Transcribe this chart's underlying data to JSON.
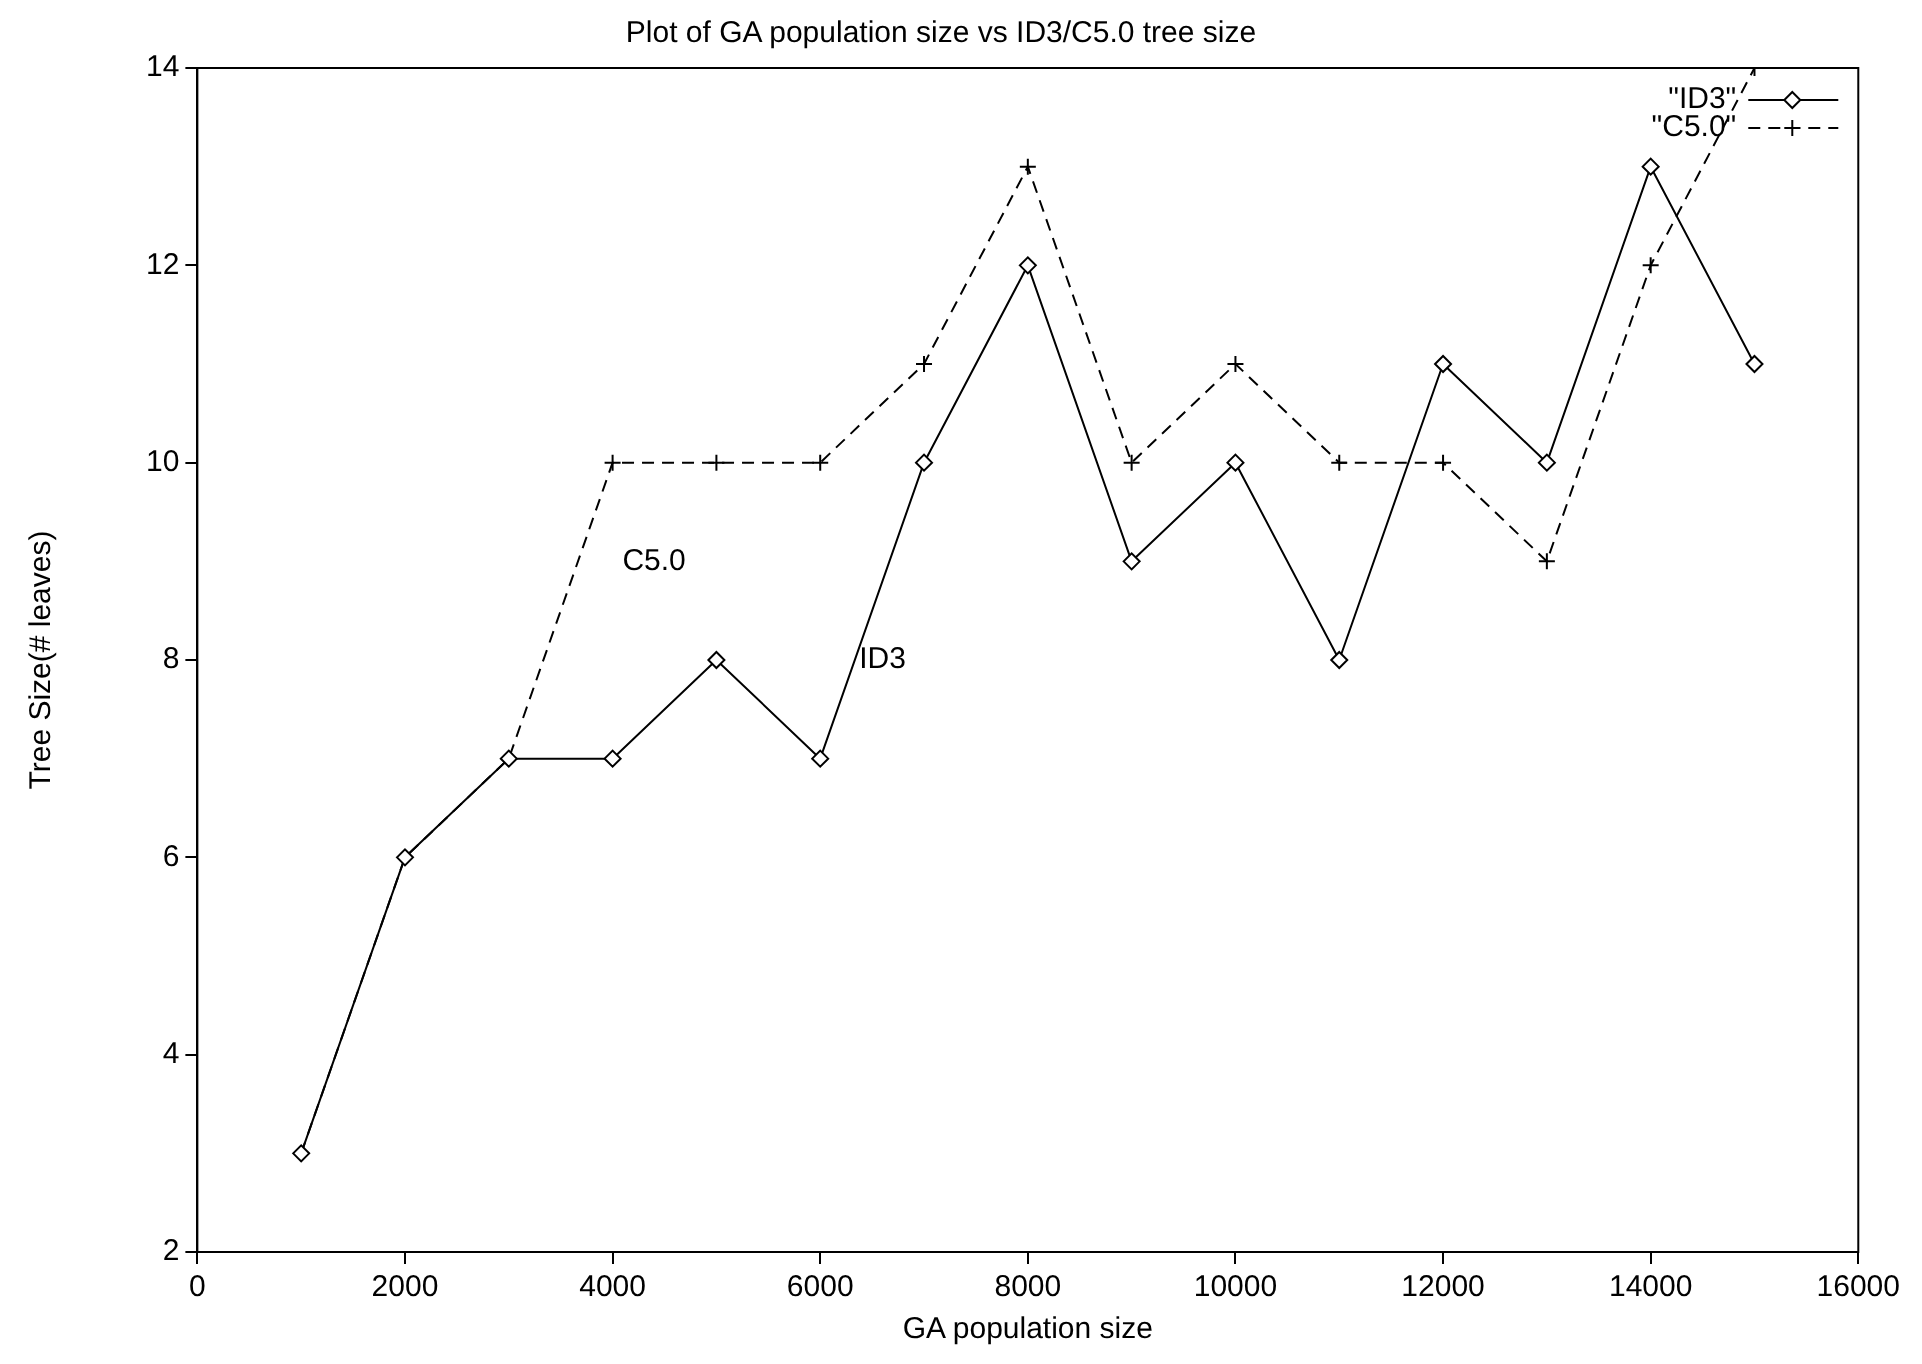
{
  "chart_data": {
    "type": "line",
    "title": "Plot of GA population size vs ID3/C5.0 tree size",
    "xlabel": "GA population size",
    "ylabel": "Tree Size(# leaves)",
    "x": [
      1000,
      2000,
      3000,
      4000,
      5000,
      6000,
      7000,
      8000,
      9000,
      10000,
      11000,
      12000,
      13000,
      14000,
      15000
    ],
    "series": [
      {
        "name": "\"ID3\"",
        "color": "#000000",
        "marker": "diamond",
        "line_style": "solid",
        "values": [
          3,
          6,
          7,
          7,
          8,
          7,
          10,
          12,
          9,
          10,
          8,
          11,
          10,
          13,
          11
        ]
      },
      {
        "name": "\"C5.0\"",
        "color": "#000000",
        "marker": "cross",
        "line_style": "dashed",
        "values": [
          3,
          6,
          7,
          10,
          10,
          10,
          11,
          13,
          10,
          11,
          10,
          10,
          9,
          12,
          14
        ]
      }
    ],
    "xlim": [
      0,
      16000
    ],
    "xticks": [
      0,
      2000,
      4000,
      6000,
      8000,
      10000,
      12000,
      14000,
      16000
    ],
    "ylim": [
      2,
      14
    ],
    "yticks": [
      2,
      4,
      6,
      8,
      10,
      12,
      14
    ],
    "grid": false,
    "legend": "top right",
    "annotations": [
      "C5.0",
      "ID3"
    ]
  }
}
